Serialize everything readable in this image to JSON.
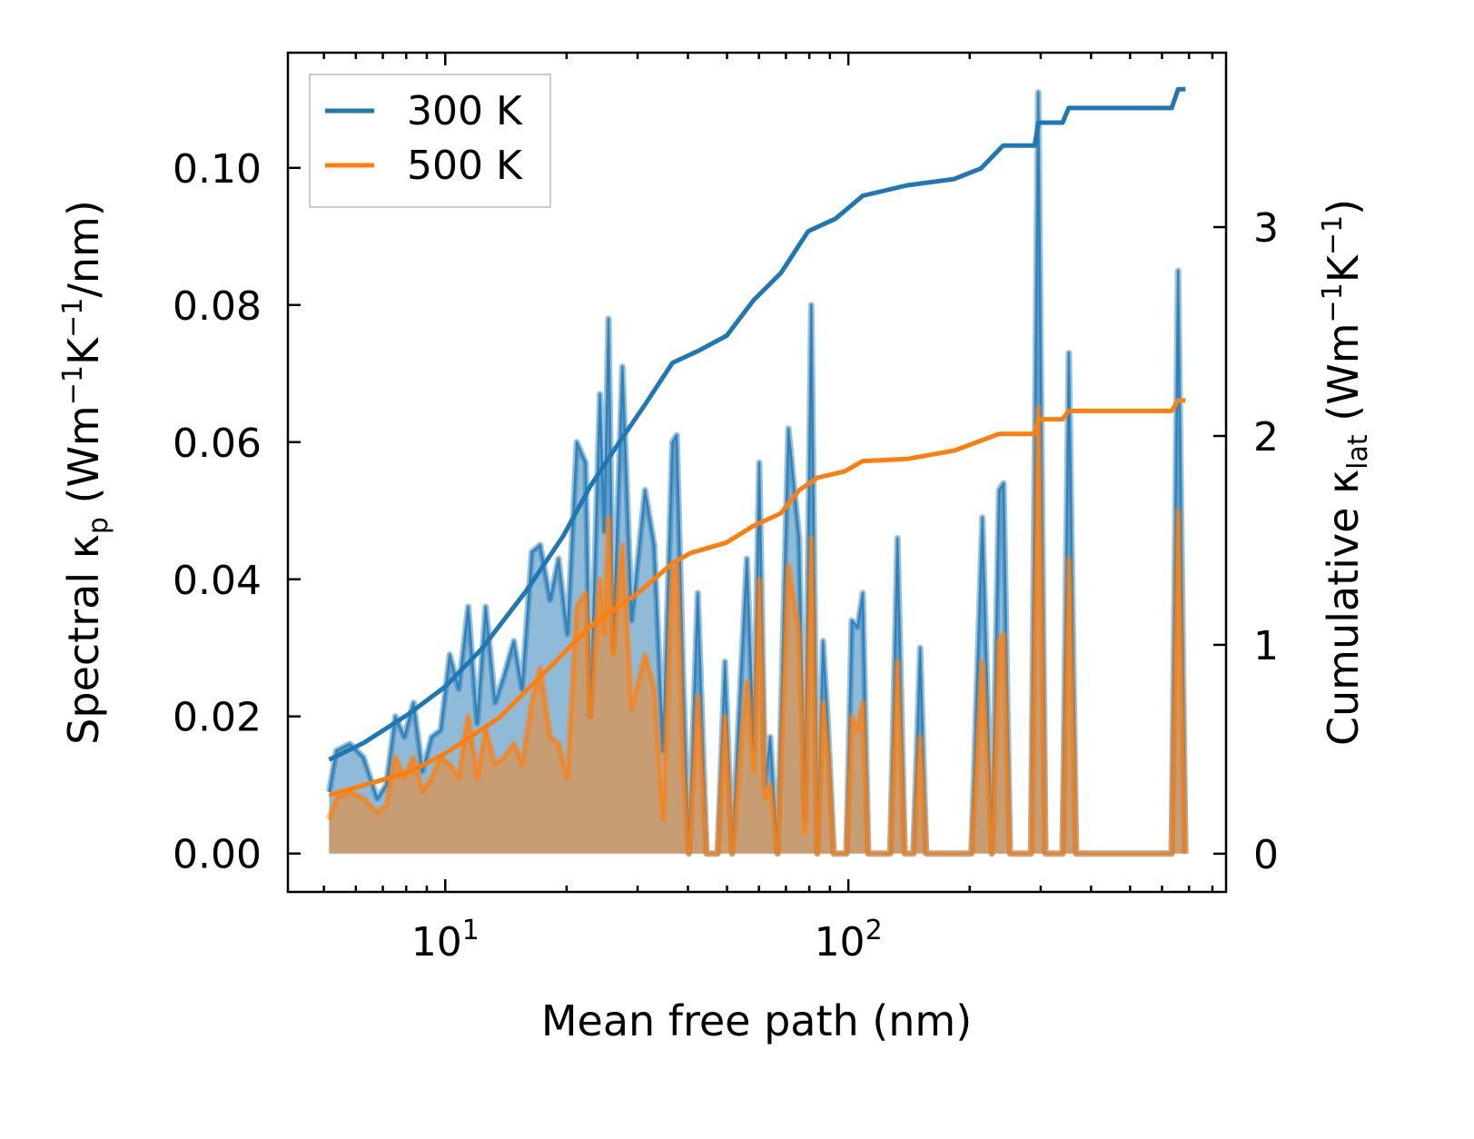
{
  "chart_data": {
    "type": "line",
    "xscale": "log",
    "xlabel": [
      {
        "t": "Mean free path (nm)"
      }
    ],
    "ylabel_left": [
      {
        "t": "Spectral κ"
      },
      {
        "t": "p",
        "s": "sub"
      },
      {
        "t": " (Wm"
      },
      {
        "t": "−1",
        "s": "sup"
      },
      {
        "t": "K"
      },
      {
        "t": "−1",
        "s": "sup"
      },
      {
        "t": "/nm)"
      }
    ],
    "ylabel_right": [
      {
        "t": "Cumulative κ"
      },
      {
        "t": "lat",
        "s": "sub"
      },
      {
        "t": " (Wm"
      },
      {
        "t": "−1",
        "s": "sup"
      },
      {
        "t": "K"
      },
      {
        "t": "−1",
        "s": "sup"
      },
      {
        "t": ")"
      }
    ],
    "xlim": [
      4.07,
      865
    ],
    "ylim_left": [
      -0.0056,
      0.1168
    ],
    "ylim_right": [
      -0.183,
      3.835
    ],
    "xticks": [
      {
        "value": 10,
        "base": "10",
        "exp": "1"
      },
      {
        "value": 100,
        "base": "10",
        "exp": "2"
      }
    ],
    "yticks_left": [
      {
        "value": 0,
        "label": "0.00"
      },
      {
        "value": 0.02,
        "label": "0.02"
      },
      {
        "value": 0.04,
        "label": "0.04"
      },
      {
        "value": 0.06,
        "label": "0.06"
      },
      {
        "value": 0.08,
        "label": "0.08"
      },
      {
        "value": 0.1,
        "label": "0.10"
      }
    ],
    "yticks_right": [
      {
        "value": 0,
        "label": "0"
      },
      {
        "value": 1,
        "label": "1"
      },
      {
        "value": 2,
        "label": "2"
      },
      {
        "value": 3,
        "label": "3"
      }
    ],
    "legend": {
      "position": "top-left",
      "entries": [
        {
          "label": "300 K",
          "color": "#1f77b4"
        },
        {
          "label": "500 K",
          "color": "#ff7f0e"
        }
      ]
    },
    "spectral_columns": [
      "mfp_nm",
      "kp_300K",
      "kp_500K"
    ],
    "spectral": [
      [
        5.15,
        0.009,
        0.005
      ],
      [
        5.37,
        0.015,
        0.008
      ],
      [
        5.8,
        0.016,
        0.009
      ],
      [
        6.27,
        0.014,
        0.008
      ],
      [
        6.78,
        0.008,
        0.006
      ],
      [
        7.14,
        0.01,
        0.007
      ],
      [
        7.52,
        0.02,
        0.014
      ],
      [
        7.92,
        0.017,
        0.011
      ],
      [
        8.34,
        0.022,
        0.014
      ],
      [
        8.78,
        0.012,
        0.009
      ],
      [
        9.25,
        0.017,
        0.011
      ],
      [
        9.74,
        0.018,
        0.014
      ],
      [
        10.26,
        0.029,
        0.013
      ],
      [
        10.8,
        0.024,
        0.011
      ],
      [
        11.4,
        0.036,
        0.02
      ],
      [
        12.0,
        0.019,
        0.011
      ],
      [
        12.6,
        0.036,
        0.018
      ],
      [
        13.3,
        0.022,
        0.013
      ],
      [
        14.0,
        0.026,
        0.014
      ],
      [
        14.8,
        0.031,
        0.016
      ],
      [
        15.5,
        0.024,
        0.013
      ],
      [
        16.4,
        0.044,
        0.022
      ],
      [
        17.2,
        0.045,
        0.027
      ],
      [
        18.2,
        0.037,
        0.017
      ],
      [
        19.1,
        0.043,
        0.016
      ],
      [
        20.1,
        0.032,
        0.011
      ],
      [
        21.2,
        0.06,
        0.036
      ],
      [
        22.3,
        0.057,
        0.038
      ],
      [
        22.9,
        0.02,
        0.02
      ],
      [
        24.2,
        0.067,
        0.04
      ],
      [
        24.8,
        0.047,
        0.032
      ],
      [
        25.4,
        0.078,
        0.049
      ],
      [
        26.1,
        0.03,
        0.029
      ],
      [
        27.5,
        0.071,
        0.045
      ],
      [
        29.0,
        0.034,
        0.021
      ],
      [
        31.3,
        0.053,
        0.029
      ],
      [
        33.0,
        0.045,
        0.024
      ],
      [
        34.7,
        0.015,
        0.005
      ],
      [
        36.6,
        0.06,
        0.041
      ],
      [
        37.5,
        0.061,
        0.042
      ],
      [
        38.9,
        0.026,
        0.013
      ],
      [
        40.2,
        0.0,
        0.0
      ],
      [
        42.3,
        0.038,
        0.023
      ],
      [
        44.5,
        0.0,
        0.0
      ],
      [
        47.4,
        0.0,
        0.0
      ],
      [
        49.4,
        0.028,
        0.02
      ],
      [
        51.5,
        0.0,
        0.0
      ],
      [
        53.7,
        0.022,
        0.013
      ],
      [
        56.0,
        0.043,
        0.025
      ],
      [
        58.3,
        0.015,
        0.012
      ],
      [
        60.1,
        0.057,
        0.04
      ],
      [
        62.1,
        0.01,
        0.008
      ],
      [
        64.0,
        0.017,
        0.01
      ],
      [
        66.7,
        0.0,
        0.0
      ],
      [
        71.0,
        0.062,
        0.042
      ],
      [
        75.5,
        0.046,
        0.032
      ],
      [
        78.0,
        0.005,
        0.003
      ],
      [
        80.9,
        0.08,
        0.046
      ],
      [
        83.8,
        0.0,
        0.0
      ],
      [
        86.5,
        0.031,
        0.022
      ],
      [
        89.1,
        0.018,
        0.014
      ],
      [
        92.0,
        0.0,
        0.0
      ],
      [
        98.9,
        0.0,
        0.0
      ],
      [
        102,
        0.034,
        0.02
      ],
      [
        105.4,
        0.033,
        0.018
      ],
      [
        108.6,
        0.038,
        0.022
      ],
      [
        112,
        0.0,
        0.0
      ],
      [
        127,
        0.0,
        0.0
      ],
      [
        132.4,
        0.046,
        0.028
      ],
      [
        138,
        0.0,
        0.0
      ],
      [
        145,
        0.0,
        0.0
      ],
      [
        150.7,
        0.03,
        0.017
      ],
      [
        156,
        0.0,
        0.0
      ],
      [
        202,
        0.0,
        0.0
      ],
      [
        215,
        0.049,
        0.028
      ],
      [
        227,
        0.0,
        0.0
      ],
      [
        236.6,
        0.053,
        0.031
      ],
      [
        242.7,
        0.054,
        0.032
      ],
      [
        251.8,
        0.0,
        0.0
      ],
      [
        283.8,
        0.0,
        0.0
      ],
      [
        295.8,
        0.111,
        0.065
      ],
      [
        308.3,
        0.0,
        0.0
      ],
      [
        340,
        0.0,
        0.0
      ],
      [
        352.4,
        0.073,
        0.043
      ],
      [
        367.3,
        0.0,
        0.0
      ],
      [
        633.9,
        0.0,
        0.0
      ],
      [
        657.7,
        0.085,
        0.05
      ],
      [
        685.5,
        0.0,
        0.0
      ]
    ],
    "cumulative": [
      {
        "name": "300 K",
        "color": "#1f77b4",
        "points": [
          [
            5.15,
            0.45
          ],
          [
            6.27,
            0.53
          ],
          [
            8.13,
            0.67
          ],
          [
            10,
            0.8
          ],
          [
            12.3,
            0.98
          ],
          [
            15.9,
            1.26
          ],
          [
            19.6,
            1.52
          ],
          [
            22.9,
            1.76
          ],
          [
            26.8,
            1.96
          ],
          [
            31.3,
            2.15
          ],
          [
            36.6,
            2.35
          ],
          [
            42.7,
            2.41
          ],
          [
            49.9,
            2.48
          ],
          [
            58.2,
            2.65
          ],
          [
            68,
            2.78
          ],
          [
            79.5,
            2.98
          ],
          [
            92.9,
            3.04
          ],
          [
            108.6,
            3.15
          ],
          [
            140,
            3.2
          ],
          [
            183,
            3.23
          ],
          [
            213,
            3.28
          ],
          [
            242,
            3.39
          ],
          [
            290,
            3.39
          ],
          [
            296,
            3.5
          ],
          [
            340,
            3.5
          ],
          [
            352,
            3.57
          ],
          [
            634,
            3.57
          ],
          [
            658,
            3.66
          ],
          [
            686,
            3.66
          ]
        ]
      },
      {
        "name": "500 K",
        "color": "#ff7f0e",
        "points": [
          [
            5.15,
            0.28
          ],
          [
            8.13,
            0.39
          ],
          [
            10,
            0.48
          ],
          [
            13.6,
            0.65
          ],
          [
            17.7,
            0.87
          ],
          [
            22.9,
            1.09
          ],
          [
            29.7,
            1.24
          ],
          [
            36.6,
            1.39
          ],
          [
            40.6,
            1.44
          ],
          [
            49.9,
            1.49
          ],
          [
            58.2,
            1.57
          ],
          [
            68,
            1.63
          ],
          [
            75.5,
            1.74
          ],
          [
            83.8,
            1.8
          ],
          [
            97.8,
            1.83
          ],
          [
            108.6,
            1.88
          ],
          [
            140,
            1.89
          ],
          [
            183,
            1.93
          ],
          [
            236.6,
            2.01
          ],
          [
            290,
            2.01
          ],
          [
            296,
            2.08
          ],
          [
            340,
            2.08
          ],
          [
            352,
            2.12
          ],
          [
            634,
            2.12
          ],
          [
            658,
            2.17
          ],
          [
            686,
            2.17
          ]
        ]
      }
    ]
  }
}
